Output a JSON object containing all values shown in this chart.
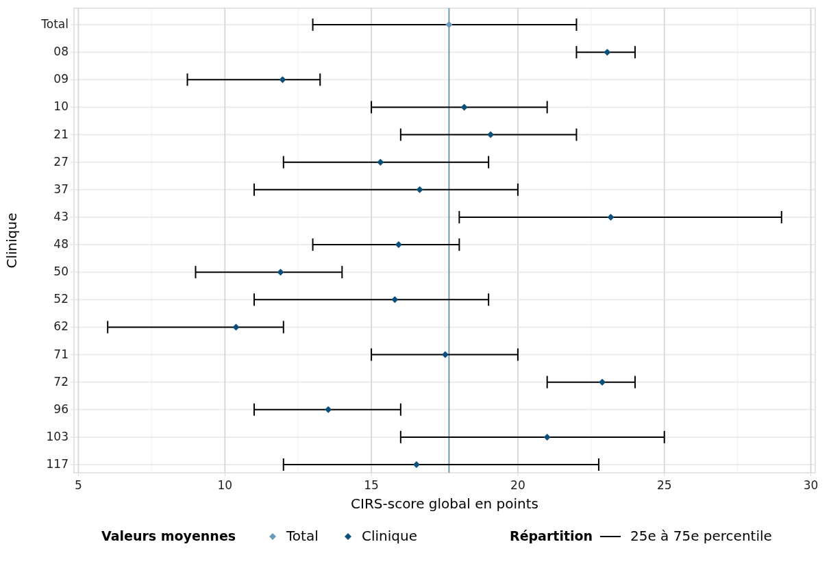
{
  "chart_data": {
    "type": "scatter",
    "orientation": "horizontal",
    "xlabel": "CIRS-score global en points",
    "ylabel": "Clinique",
    "legend_title": "Valeurs moyennes",
    "legend": "bottom",
    "grid": true,
    "marker": "diamond",
    "categories": [
      "Total",
      "08",
      "09",
      "10",
      "21",
      "27",
      "37",
      "43",
      "48",
      "50",
      "52",
      "62",
      "71",
      "72",
      "96",
      "103",
      "117"
    ],
    "xlim": [
      4.85,
      30.15
    ],
    "xticks": [
      5,
      10,
      15,
      20,
      25,
      30
    ],
    "series": [
      {
        "name": "Total",
        "color": "#6b9ab8",
        "values": [
          17.65,
          null,
          null,
          null,
          null,
          null,
          null,
          null,
          null,
          null,
          null,
          null,
          null,
          null,
          null,
          null,
          null
        ],
        "errors": [
          [
            13,
            22
          ],
          null,
          null,
          null,
          null,
          null,
          null,
          null,
          null,
          null,
          null,
          null,
          null,
          null,
          null,
          null,
          null
        ]
      },
      {
        "name": "Clinique",
        "color": "#0b4f7a",
        "values": [
          null,
          23.05,
          11.97,
          18.17,
          19.07,
          15.31,
          16.65,
          23.17,
          15.93,
          11.9,
          15.8,
          10.38,
          17.52,
          22.88,
          13.53,
          21.0,
          16.54
        ],
        "errors": [
          null,
          [
            22,
            24
          ],
          [
            8.72,
            13.25
          ],
          [
            15,
            21
          ],
          [
            16,
            22
          ],
          [
            12,
            19
          ],
          [
            11,
            20
          ],
          [
            18,
            29
          ],
          [
            13,
            18
          ],
          [
            9,
            14
          ],
          [
            11,
            19
          ],
          [
            6,
            12
          ],
          [
            15,
            20
          ],
          [
            21,
            24
          ],
          [
            11,
            16
          ],
          [
            16,
            25
          ],
          [
            12,
            22.76
          ]
        ]
      }
    ],
    "ref_lines": [
      {
        "axis": "x",
        "value": 17.65,
        "color": "#6b9ab8"
      }
    ],
    "annotations": [
      "Répartition",
      "25e à 75e percentile"
    ]
  }
}
